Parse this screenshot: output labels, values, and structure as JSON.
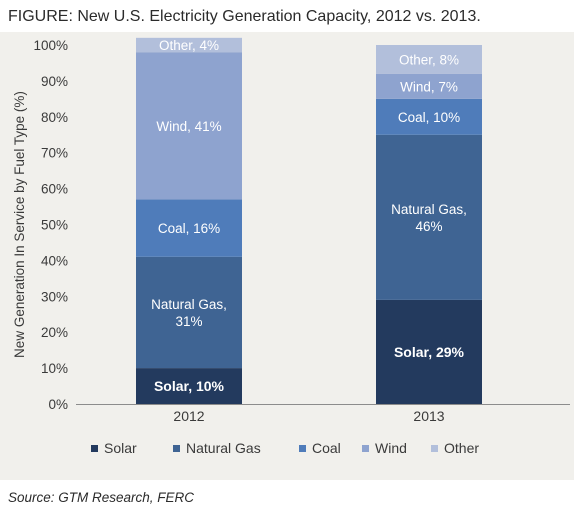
{
  "figure_title": "FIGURE: New U.S. Electricity Generation Capacity, 2012 vs. 2013.",
  "source": "Source: GTM Research, FERC",
  "colors": {
    "Solar": "#233a5e",
    "Natural Gas": "#3f6493",
    "Coal": "#4f7cba",
    "Wind": "#8ea3cf",
    "Other": "#b2bfdb",
    "panel": "#f1f0ec"
  },
  "chart_data": {
    "type": "bar",
    "stacked": true,
    "title": "",
    "xlabel": "",
    "ylabel": "New Generation In Service by Fuel Type (%)",
    "ylim": [
      0,
      100
    ],
    "yticks": [
      "0%",
      "10%",
      "20%",
      "30%",
      "40%",
      "50%",
      "60%",
      "70%",
      "80%",
      "90%",
      "100%"
    ],
    "categories": [
      "2012",
      "2013"
    ],
    "legend_position": "bottom",
    "grid": false,
    "series": [
      {
        "name": "Solar",
        "values": [
          10,
          29
        ],
        "labels": [
          "Solar, 10%",
          "Solar, 29%"
        ]
      },
      {
        "name": "Natural Gas",
        "values": [
          31,
          46
        ],
        "labels": [
          "Natural Gas,|31%",
          "Natural Gas,|46%"
        ]
      },
      {
        "name": "Coal",
        "values": [
          16,
          10
        ],
        "labels": [
          "Coal, 16%",
          "Coal, 10%"
        ]
      },
      {
        "name": "Wind",
        "values": [
          41,
          7
        ],
        "labels": [
          "Wind, 41%",
          "Wind, 7%"
        ]
      },
      {
        "name": "Other",
        "values": [
          4,
          8
        ],
        "labels": [
          "Other, 4%",
          "Other, 8%"
        ]
      }
    ]
  }
}
